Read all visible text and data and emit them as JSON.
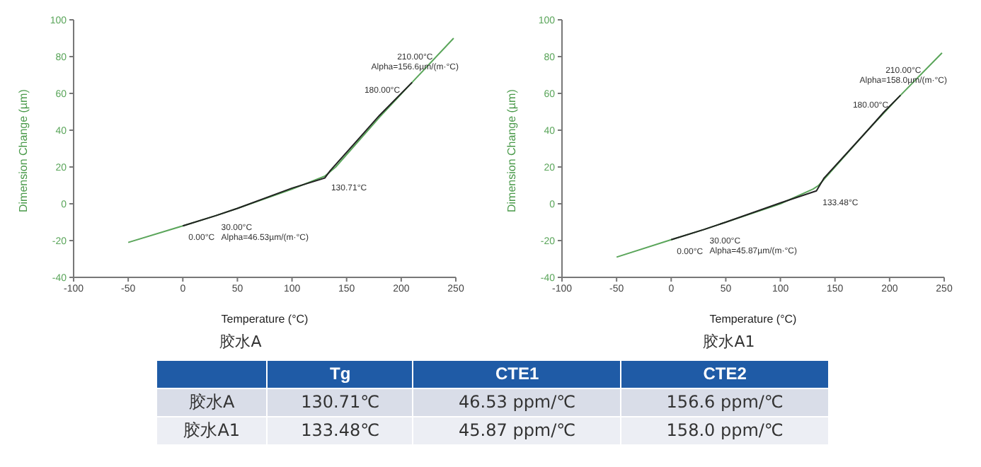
{
  "chart_data": [
    {
      "type": "line",
      "title": "胶水A",
      "xlabel": "Temperature (°C)",
      "ylabel": "Dimension Change (µm)",
      "xlim": [
        -100,
        250
      ],
      "xticks": [
        -100,
        -50,
        0,
        50,
        100,
        150,
        200,
        250
      ],
      "ylim": [
        -40,
        100
      ],
      "yticks": [
        -40,
        -20,
        0,
        20,
        40,
        60,
        80,
        100
      ],
      "marker": "none",
      "line_style": "solid",
      "series": [
        {
          "color": "#5aa55a",
          "x": [
            -50,
            0,
            30,
            50,
            100,
            130,
            140,
            180,
            210,
            248
          ],
          "values": [
            -21,
            -12,
            -6.5,
            -2.5,
            8,
            15,
            20,
            47,
            66,
            90
          ]
        },
        {
          "color": "#222222",
          "x": [
            0,
            30,
            50,
            100,
            130,
            135,
            180,
            210
          ],
          "values": [
            -12,
            -6.5,
            -2.5,
            8.5,
            14,
            18,
            48,
            66
          ]
        }
      ],
      "annotations": [
        {
          "text": "0.00°C",
          "x": 0,
          "y": -12
        },
        {
          "text": "30.00°C\nAlpha=46.53µm/(m·°C)",
          "x": 30,
          "y": -6.5
        },
        {
          "text": "130.71°C",
          "x": 130.71,
          "y": 15
        },
        {
          "text": "180.00°C",
          "x": 180,
          "y": 48
        },
        {
          "text": "210.00°C\nAlpha=156.6µm/(m·°C)",
          "x": 210,
          "y": 66
        }
      ]
    },
    {
      "type": "line",
      "title": "胶水A1",
      "xlabel": "Temperature (°C)",
      "ylabel": "Dimension Change (µm)",
      "xlim": [
        -100,
        250
      ],
      "xticks": [
        -100,
        -50,
        0,
        50,
        100,
        150,
        200,
        250
      ],
      "ylim": [
        -40,
        100
      ],
      "yticks": [
        -40,
        -20,
        0,
        20,
        40,
        60,
        80,
        100
      ],
      "marker": "none",
      "line_style": "solid",
      "series": [
        {
          "color": "#5aa55a",
          "x": [
            -50,
            0,
            30,
            50,
            100,
            130,
            135,
            180,
            210,
            248
          ],
          "values": [
            -29,
            -19.5,
            -14,
            -10,
            0,
            8,
            10,
            40,
            59,
            82
          ]
        },
        {
          "color": "#222222",
          "x": [
            0,
            30,
            50,
            100,
            133,
            140,
            180,
            195,
            210
          ],
          "values": [
            -19.5,
            -14,
            -10,
            0.5,
            7,
            14,
            40,
            50,
            59
          ]
        }
      ],
      "annotations": [
        {
          "text": "0.00°C",
          "x": 0,
          "y": -19.5
        },
        {
          "text": "30.00°C\nAlpha=45.87µm/(m·°C)",
          "x": 30,
          "y": -14
        },
        {
          "text": "133.48°C",
          "x": 133.48,
          "y": 7
        },
        {
          "text": "180.00°C",
          "x": 180,
          "y": 40
        },
        {
          "text": "210.00°C\nAlpha=158.0µm/(m·°C)",
          "x": 210,
          "y": 59
        }
      ]
    },
    {
      "type": "other",
      "categories": [
        null,
        "Tg",
        "CTE1",
        "CTE2"
      ],
      "annotations": [
        "胶水A",
        "130.71℃",
        "46.53 ppm/℃",
        "156.6 ppm/℃",
        "胶水A1",
        "133.48℃",
        "45.87 ppm/℃",
        "158.0 ppm/℃"
      ]
    }
  ]
}
